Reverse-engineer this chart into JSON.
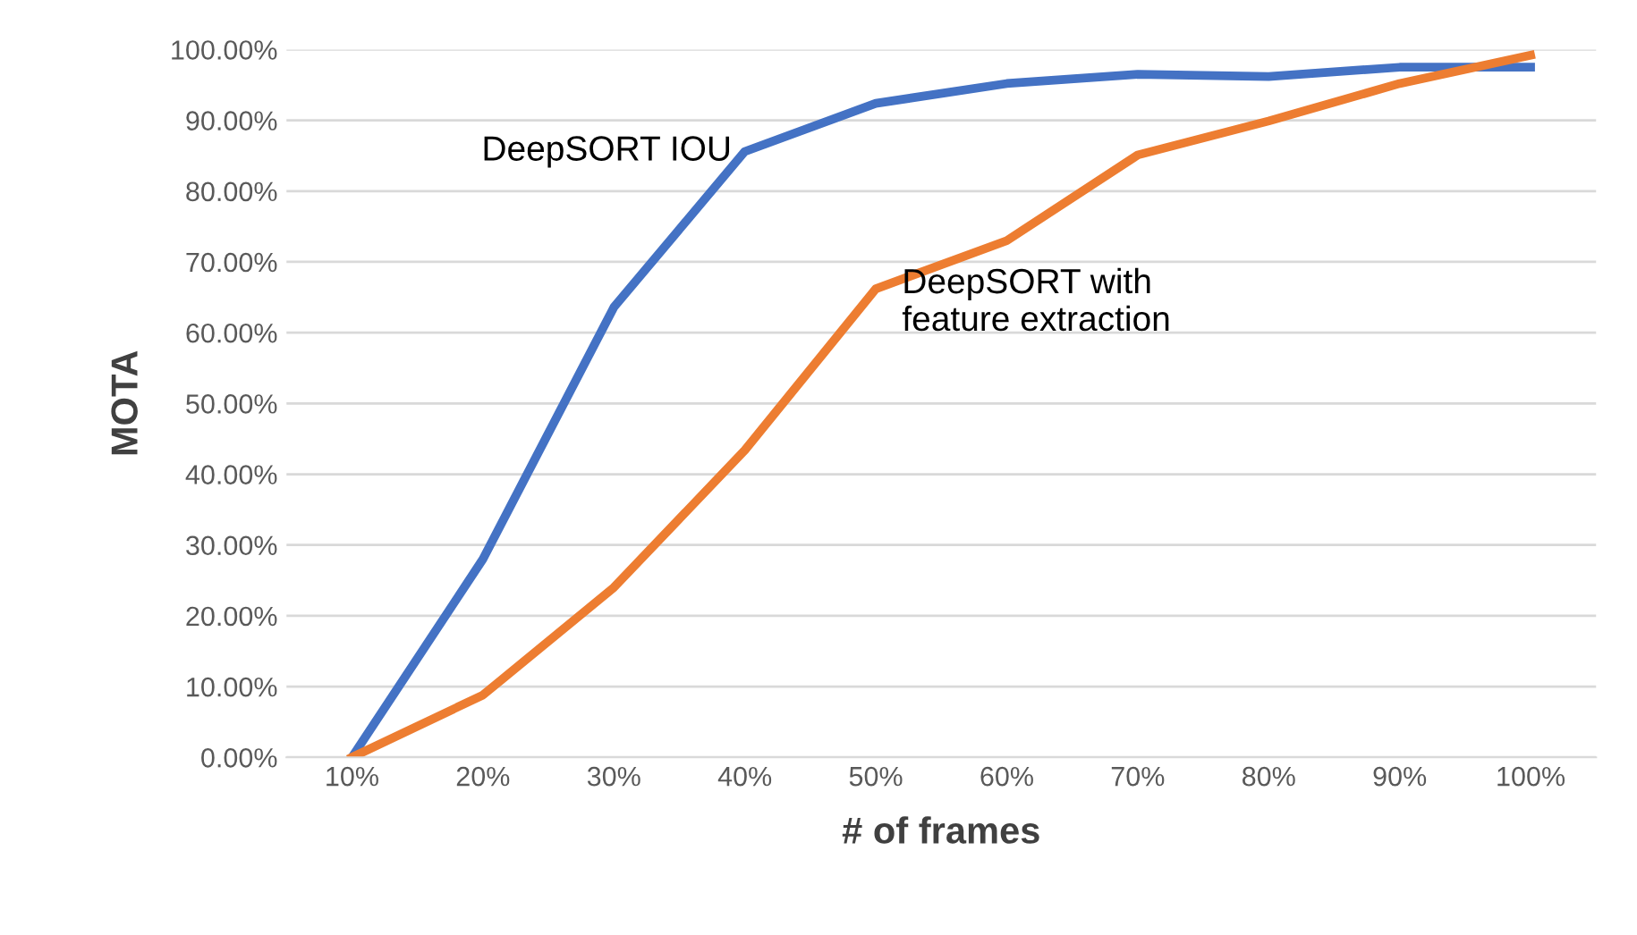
{
  "chart_data": {
    "type": "line",
    "xlabel": "# of frames",
    "ylabel": "MOTA",
    "categories": [
      "10%",
      "20%",
      "30%",
      "40%",
      "50%",
      "60%",
      "70%",
      "80%",
      "90%",
      "100%"
    ],
    "series": [
      {
        "name": "DeepSORT IOU",
        "color": "#4472c4",
        "values": [
          0,
          28.0,
          63.6,
          85.6,
          92.4,
          95.2,
          96.5,
          96.2,
          97.5,
          97.5
        ]
      },
      {
        "name": "DeepSORT with\nfeature extraction",
        "color": "#ed7d31",
        "values": [
          0,
          8.8,
          24.0,
          43.4,
          66.2,
          73.0,
          85.1,
          89.9,
          95.2,
          99.2
        ]
      }
    ],
    "ylim": [
      0,
      100
    ],
    "yticks": [
      {
        "value": 0,
        "label": "0.00%"
      },
      {
        "value": 10,
        "label": "10.00%"
      },
      {
        "value": 20,
        "label": "20.00%"
      },
      {
        "value": 30,
        "label": "30.00%"
      },
      {
        "value": 40,
        "label": "40.00%"
      },
      {
        "value": 50,
        "label": "50.00%"
      },
      {
        "value": 60,
        "label": "60.00%"
      },
      {
        "value": 70,
        "label": "70.00%"
      },
      {
        "value": 80,
        "label": "80.00%"
      },
      {
        "value": 90,
        "label": "90.00%"
      },
      {
        "value": 100,
        "label": "100.00%"
      }
    ],
    "grid": "y",
    "legend": false,
    "marker": "none",
    "line_style": "solid"
  }
}
